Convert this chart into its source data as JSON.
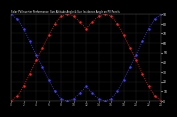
{
  "title": "Solar PV/Inverter Performance  Sun Altitude Angle & Sun Incidence Angle on PV Panels",
  "bg_color": "#000000",
  "plot_bg_color": "#000000",
  "grid_color": "#444444",
  "y_label_color": "#ffffff",
  "x_label_color": "#aaaaaa",
  "blue_color": "#4444ff",
  "red_color": "#ff2222",
  "ylim": [
    0,
    90
  ],
  "xlim": [
    0,
    24
  ],
  "x_ticks": [
    0,
    2,
    4,
    6,
    8,
    10,
    12,
    14,
    16,
    18,
    20,
    22,
    24
  ],
  "y_ticks": [
    0,
    10,
    20,
    30,
    40,
    50,
    60,
    70,
    80,
    90
  ],
  "sun_altitude": {
    "x": [
      0,
      1,
      2,
      3,
      4,
      5,
      6,
      7,
      8,
      9,
      10,
      11,
      12,
      13,
      14,
      15,
      16,
      17,
      18,
      19,
      20,
      21,
      22,
      23,
      24
    ],
    "y": [
      90,
      85,
      75,
      62,
      48,
      35,
      22,
      10,
      2,
      0,
      2,
      8,
      15,
      8,
      2,
      0,
      2,
      10,
      22,
      35,
      48,
      62,
      75,
      85,
      90
    ]
  },
  "incidence_angle": {
    "x": [
      0,
      1,
      2,
      3,
      4,
      5,
      6,
      7,
      8,
      9,
      10,
      11,
      12,
      13,
      14,
      15,
      16,
      17,
      18,
      19,
      20,
      21,
      22,
      23,
      24
    ],
    "y": [
      0,
      5,
      15,
      28,
      42,
      55,
      68,
      80,
      88,
      90,
      88,
      82,
      75,
      82,
      88,
      90,
      88,
      80,
      68,
      55,
      42,
      28,
      15,
      5,
      0
    ]
  }
}
